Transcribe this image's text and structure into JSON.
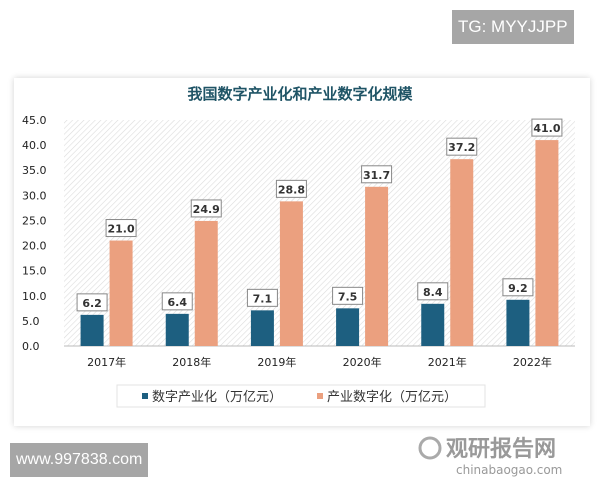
{
  "watermarks": {
    "top_right": "TG: MYYJJPP",
    "bottom_left": "www.997838.com",
    "logo_cn": "观研报告网",
    "logo_en": "chinabaogao.com"
  },
  "chart_data": {
    "type": "bar",
    "title": "我国数字产业化和产业数字化规模",
    "categories": [
      "2017年",
      "2018年",
      "2019年",
      "2020年",
      "2021年",
      "2022年"
    ],
    "series": [
      {
        "name": "数字产业化（万亿元）",
        "values": [
          6.2,
          6.4,
          7.1,
          7.5,
          8.4,
          9.2
        ],
        "color": "#1d5f80"
      },
      {
        "name": "产业数字化（万亿元）",
        "values": [
          21.0,
          24.9,
          28.8,
          31.7,
          37.2,
          41.0
        ],
        "color": "#eba07f"
      }
    ],
    "ylim": [
      0,
      45
    ],
    "yticks": [
      "0.0",
      "5.0",
      "10.0",
      "15.0",
      "20.0",
      "25.0",
      "30.0",
      "35.0",
      "40.0",
      "45.0"
    ],
    "grid": true,
    "legend": "bottom",
    "data_labels": true
  }
}
